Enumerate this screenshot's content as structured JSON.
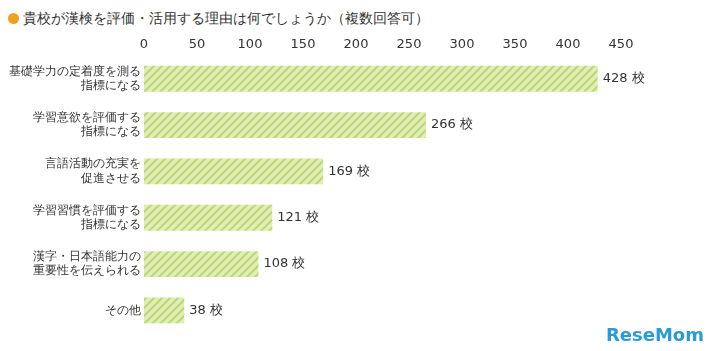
{
  "chart_data": {
    "type": "bar",
    "orientation": "horizontal",
    "title": "貴校が漢検を評価・活用する理由は何でしょうか（複数回答可）",
    "categories": [
      [
        "基礎学力の定着度を測る",
        "指標になる"
      ],
      [
        "学習意欲を評価する",
        "指標になる"
      ],
      [
        "言語活動の充実を",
        "促進させる"
      ],
      [
        "学習習慣を評価する",
        "指標になる"
      ],
      [
        "漢字・日本語能力の",
        "重要性を伝えられる"
      ],
      [
        "その他"
      ]
    ],
    "values": [
      428,
      266,
      169,
      121,
      108,
      38
    ],
    "value_labels": [
      "428 校",
      "266 校",
      "169 校",
      "121 校",
      "108 校",
      "38 校"
    ],
    "data_labels": true,
    "color": "#bcd86a",
    "xlim": [
      0,
      450
    ],
    "xticks": [
      0,
      50,
      100,
      150,
      200,
      250,
      300,
      350,
      400,
      450
    ],
    "grid": false,
    "annotations": [
      "ReseMom"
    ]
  }
}
